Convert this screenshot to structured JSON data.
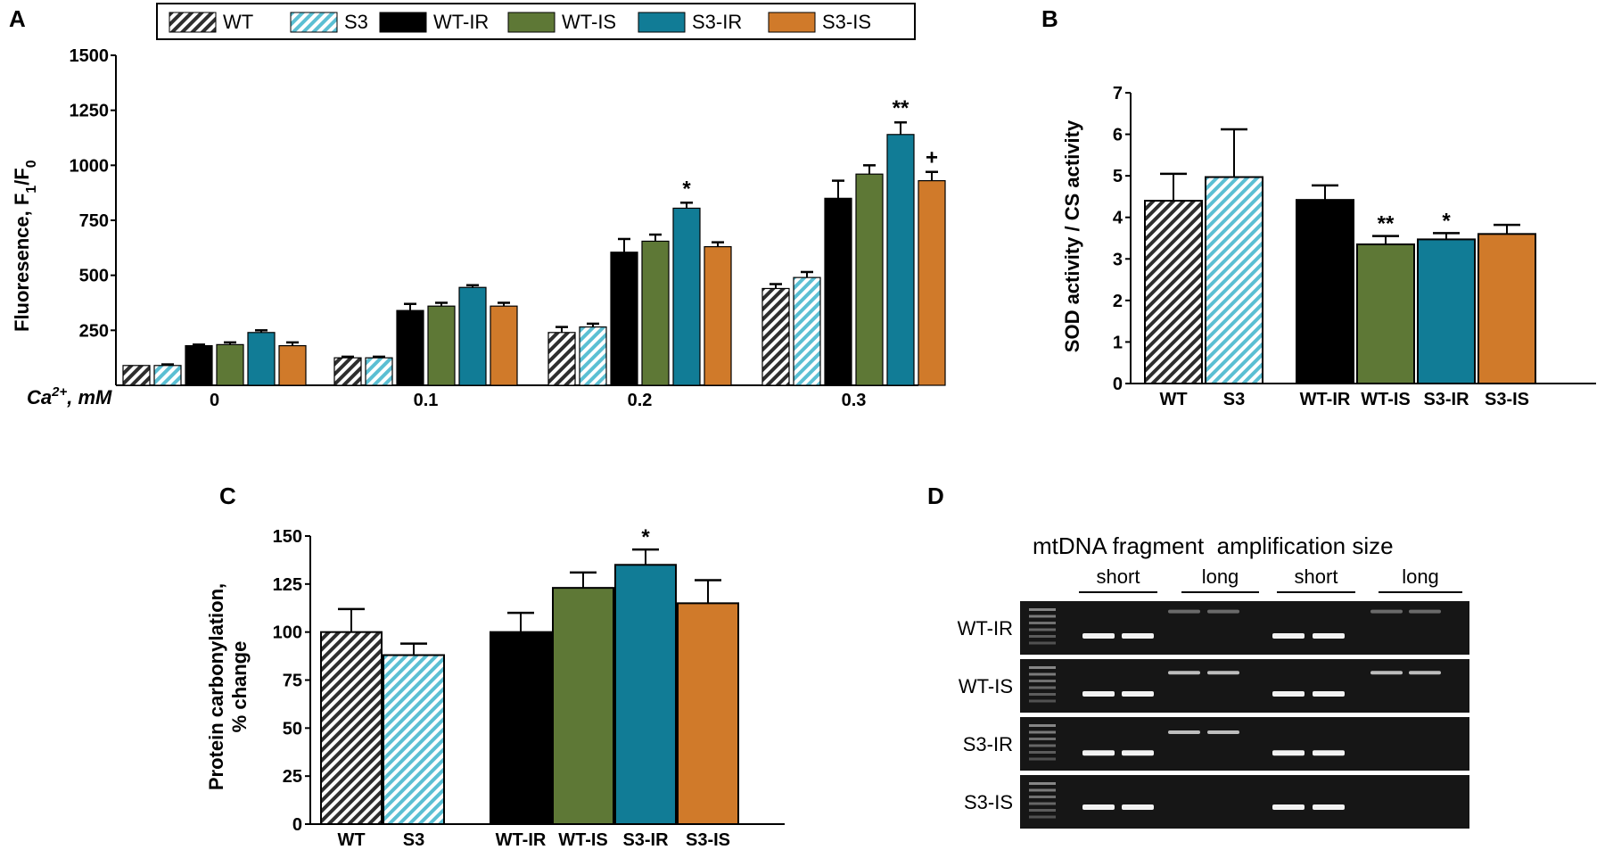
{
  "panel_labels": {
    "a": "A",
    "b": "B",
    "c": "C",
    "d": "D"
  },
  "colors": {
    "WT": "#2e2e2e",
    "S3": "#5bbfd3",
    "WT-IR": "#000000",
    "WT-IS": "#5e7836",
    "S3-IR": "#117c96",
    "S3-IS": "#d07a2a"
  },
  "chart_data": [
    {
      "id": "A",
      "type": "bar",
      "title": "",
      "ylabel_main": "Fluoresence, F",
      "ylabel_sub1": "1",
      "ylabel_mid": "/F",
      "ylabel_sub2": "0",
      "xlabel_prefix": "Ca",
      "xlabel_sup": "2+",
      "xlabel_suffix": ", mM",
      "ylim": [
        0,
        1500
      ],
      "yticks": [
        "250",
        "500",
        "750",
        "1000",
        "1250",
        "1500"
      ],
      "categories": [
        "0",
        "0.1",
        "0.2",
        "0.3"
      ],
      "legend": [
        "WT",
        "S3",
        "WT-IR",
        "WT-IS",
        "S3-IR",
        "S3-IS"
      ],
      "series": [
        {
          "name": "WT",
          "values": [
            90,
            125,
            240,
            440
          ],
          "errors": [
            0,
            5,
            25,
            20
          ]
        },
        {
          "name": "S3",
          "values": [
            90,
            125,
            265,
            490
          ],
          "errors": [
            5,
            5,
            15,
            25
          ]
        },
        {
          "name": "WT-IR",
          "values": [
            180,
            340,
            605,
            850
          ],
          "errors": [
            5,
            30,
            60,
            80
          ]
        },
        {
          "name": "WT-IS",
          "values": [
            185,
            360,
            655,
            960
          ],
          "errors": [
            10,
            15,
            30,
            40
          ]
        },
        {
          "name": "S3-IR",
          "values": [
            240,
            445,
            805,
            1140
          ],
          "errors": [
            10,
            10,
            25,
            55
          ]
        },
        {
          "name": "S3-IS",
          "values": [
            180,
            360,
            630,
            930
          ],
          "errors": [
            15,
            15,
            20,
            40
          ]
        }
      ],
      "annotations": [
        {
          "category": "0.2",
          "series": "S3-IR",
          "text": "*"
        },
        {
          "category": "0.3",
          "series": "S3-IR",
          "text": "**"
        },
        {
          "category": "0.3",
          "series": "S3-IS",
          "text": "+"
        }
      ]
    },
    {
      "id": "B",
      "type": "bar",
      "ylabel": "SOD activity / CS activity",
      "ylim": [
        0,
        7
      ],
      "yticks": [
        "0",
        "1",
        "2",
        "3",
        "4",
        "5",
        "6",
        "7"
      ],
      "categories": [
        "WT",
        "S3",
        "WT-IR",
        "WT-IS",
        "S3-IR",
        "S3-IS"
      ],
      "values": [
        4.4,
        4.97,
        4.42,
        3.35,
        3.47,
        3.6
      ],
      "errors": [
        0.65,
        1.15,
        0.35,
        0.2,
        0.15,
        0.22
      ],
      "annotations": [
        {
          "category": "WT-IS",
          "text": "**"
        },
        {
          "category": "S3-IR",
          "text": "*"
        }
      ]
    },
    {
      "id": "C",
      "type": "bar",
      "ylabel_line1": "Protein carbonylation,",
      "ylabel_line2": "% change",
      "ylim": [
        0,
        150
      ],
      "yticks": [
        "0",
        "25",
        "50",
        "75",
        "100",
        "125",
        "150"
      ],
      "categories": [
        "WT",
        "S3",
        "WT-IR",
        "WT-IS",
        "S3-IR",
        "S3-IS"
      ],
      "values": [
        100,
        88,
        100,
        123,
        135,
        115
      ],
      "errors": [
        12,
        6,
        10,
        8,
        8,
        12
      ],
      "annotations": [
        {
          "category": "S3-IR",
          "text": "*"
        }
      ]
    }
  ],
  "gel": {
    "header": "mtDNA fragment  amplification size",
    "subheaders": [
      "short",
      "long",
      "short",
      "long"
    ],
    "rows": [
      "WT-IR",
      "WT-IS",
      "S3-IR",
      "S3-IS"
    ]
  }
}
